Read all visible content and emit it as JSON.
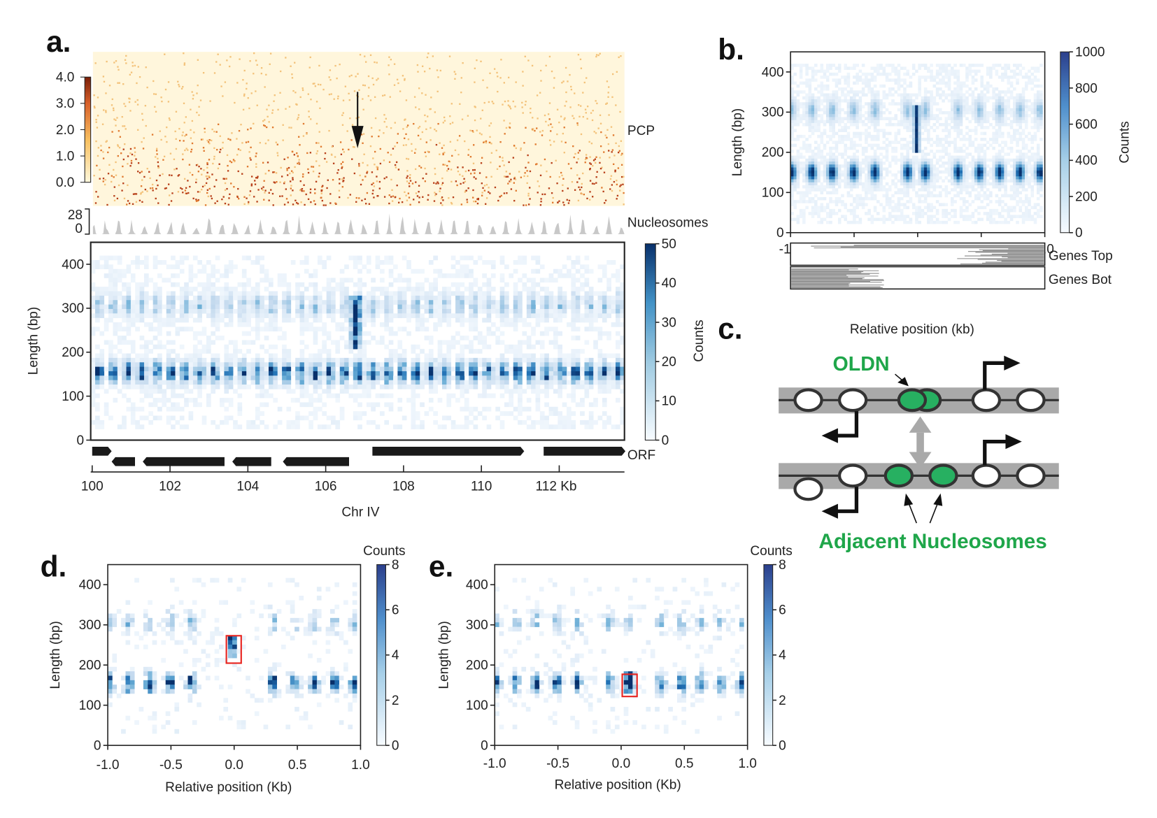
{
  "panels": {
    "a": {
      "letter": "a.",
      "pcp_label": "PCP",
      "nuc_label": "Nucleosomes",
      "nuc_max": "28",
      "nuc_min": "0",
      "orf_label": "ORF",
      "xlabel": "Chr IV",
      "ylabel": "Length (bp)",
      "cbar_label": "Counts"
    },
    "b": {
      "letter": "b.",
      "genes_top": "Genes Top",
      "genes_bot": "Genes Bot",
      "xlabel": "Relative position (kb)",
      "ylabel": "Length (bp)",
      "cbar_label": "Counts"
    },
    "c": {
      "letter": "c.",
      "oldn": "OLDN",
      "adjacent": "Adjacent Nucleosomes"
    },
    "d": {
      "letter": "d.",
      "xlabel": "Relative position (Kb)",
      "ylabel": "Length (bp)",
      "cbar_label": "Counts"
    },
    "e": {
      "letter": "e.",
      "xlabel": "Relative position (Kb)",
      "ylabel": "Length (bp)",
      "cbar_label": "Counts"
    }
  },
  "colors": {
    "blue_dark": "#08306b",
    "blue_mid": "#4a90c8",
    "blue_light": "#deebf7",
    "pcp_dark": "#8b2500",
    "pcp_light": "#fff5d6",
    "green": "#1fa64a",
    "gray_track": "#bdbdbd",
    "highlight_box": "#e8231e"
  },
  "chart_data": [
    {
      "id": "a-pcp",
      "type": "heatmap",
      "colorbar": {
        "range": [
          0.0,
          4.0
        ],
        "ticks": [
          "0.0",
          "1.0",
          "2.0",
          "3.0",
          "4.0"
        ]
      },
      "annotation": "down-arrow at ~106.8 Kb"
    },
    {
      "id": "a-nucleosomes",
      "type": "area",
      "yrange": [
        0,
        28
      ]
    },
    {
      "id": "a-length",
      "type": "heatmap",
      "xlim": [
        100,
        113.7
      ],
      "xticks": [
        "100",
        "102",
        "104",
        "106",
        "108",
        "110",
        "112 Kb"
      ],
      "ylim": [
        0,
        450
      ],
      "yticks": [
        "0",
        "100",
        "200",
        "300",
        "400"
      ],
      "colorbar": {
        "range": [
          0,
          50
        ],
        "ticks": [
          "0",
          "10",
          "20",
          "30",
          "40",
          "50"
        ]
      },
      "bands_bp": [
        150,
        300
      ],
      "oldn": {
        "x": 106.8,
        "length_bp": [
          200,
          330
        ]
      },
      "orfs": [
        {
          "start": 100.0,
          "end": 100.5,
          "strand": "+"
        },
        {
          "start": 100.5,
          "end": 101.1,
          "strand": "-"
        },
        {
          "start": 101.3,
          "end": 103.4,
          "strand": "-"
        },
        {
          "start": 103.6,
          "end": 104.6,
          "strand": "-"
        },
        {
          "start": 104.9,
          "end": 106.6,
          "strand": "-"
        },
        {
          "start": 107.2,
          "end": 111.1,
          "strand": "+"
        },
        {
          "start": 111.6,
          "end": 113.7,
          "strand": "+"
        }
      ]
    },
    {
      "id": "b",
      "type": "heatmap",
      "xlim": [
        -1.0,
        1.0
      ],
      "xticks": [
        "-1.0",
        "-0.5",
        "0.0",
        "0.5",
        "1.0"
      ],
      "ylim": [
        0,
        450
      ],
      "yticks": [
        "0",
        "100",
        "200",
        "300",
        "400"
      ],
      "colorbar": {
        "range": [
          0,
          1000
        ],
        "ticks": [
          "0",
          "200",
          "400",
          "600",
          "800",
          "1000"
        ]
      },
      "nucleosome_positions_kb": [
        -0.99,
        -0.83,
        -0.67,
        -0.5,
        -0.33,
        -0.07,
        0.07,
        0.33,
        0.5,
        0.66,
        0.82,
        0.98
      ],
      "oldn": {
        "x": 0.0,
        "length_bp": [
          200,
          320
        ]
      }
    },
    {
      "id": "d",
      "type": "heatmap",
      "xlim": [
        -1.0,
        1.0
      ],
      "xticks": [
        "-1.0",
        "-0.5",
        "0.0",
        "0.5",
        "1.0"
      ],
      "ylim": [
        0,
        450
      ],
      "yticks": [
        "0",
        "100",
        "200",
        "300",
        "400"
      ],
      "colorbar": {
        "range": [
          0,
          8
        ],
        "ticks": [
          "0",
          "2",
          "4",
          "6",
          "8"
        ]
      },
      "nucleosome_positions_kb": [
        -0.99,
        -0.83,
        -0.67,
        -0.5,
        -0.33,
        0.33,
        0.5,
        0.66,
        0.82,
        0.98
      ],
      "highlight": {
        "x": 0.0,
        "length_bp": [
          210,
          270
        ]
      }
    },
    {
      "id": "e",
      "type": "heatmap",
      "xlim": [
        -1.0,
        1.0
      ],
      "xticks": [
        "-1.0",
        "-0.5",
        "0.0",
        "0.5",
        "1.0"
      ],
      "ylim": [
        0,
        450
      ],
      "yticks": [
        "0",
        "100",
        "200",
        "300",
        "400"
      ],
      "colorbar": {
        "range": [
          0,
          8
        ],
        "ticks": [
          "0",
          "2",
          "4",
          "6",
          "8"
        ]
      },
      "nucleosome_positions_kb": [
        -0.99,
        -0.83,
        -0.67,
        -0.5,
        -0.33,
        -0.08,
        0.08,
        0.33,
        0.5,
        0.66,
        0.82,
        0.98
      ],
      "highlight": {
        "x": 0.08,
        "length_bp": [
          120,
          180
        ]
      }
    }
  ]
}
